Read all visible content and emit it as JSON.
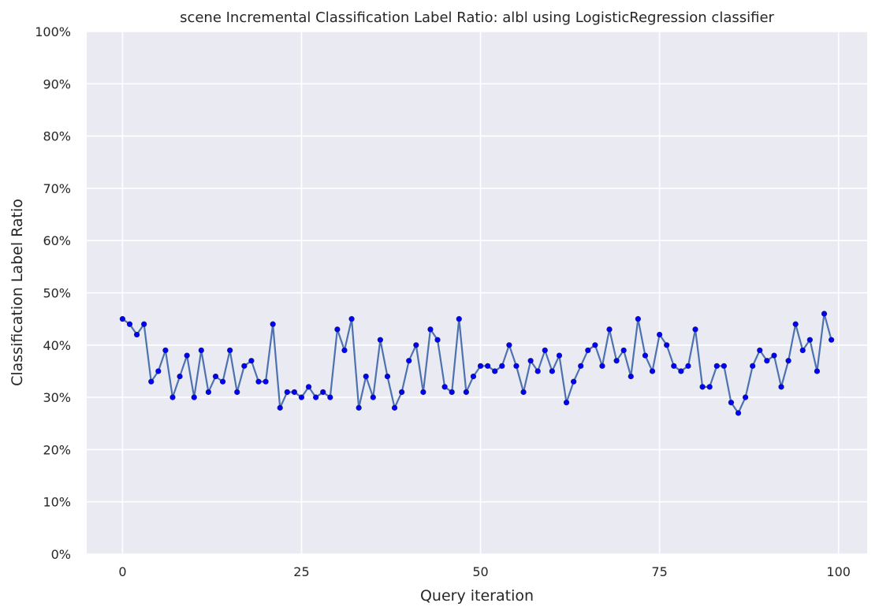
{
  "chart_data": {
    "type": "line",
    "title": "scene Incremental Classification Label Ratio: albl using LogisticRegression classifier",
    "xlabel": "Query iteration",
    "ylabel": "Classification Label Ratio",
    "xlim": [
      -5,
      104
    ],
    "ylim": [
      0,
      100
    ],
    "xticks": [
      0,
      25,
      50,
      75,
      100
    ],
    "xtick_labels": [
      "0",
      "25",
      "50",
      "75",
      "100"
    ],
    "yticks": [
      0,
      10,
      20,
      30,
      40,
      50,
      60,
      70,
      80,
      90,
      100
    ],
    "ytick_labels": [
      "0%",
      "10%",
      "20%",
      "30%",
      "40%",
      "50%",
      "60%",
      "70%",
      "80%",
      "90%",
      "100%"
    ],
    "grid": true,
    "series": [
      {
        "name": "label ratio",
        "line_color": "#4c72b0",
        "marker_color": "#0000ff",
        "x": [
          0,
          1,
          2,
          3,
          4,
          5,
          6,
          7,
          8,
          9,
          10,
          11,
          12,
          13,
          14,
          15,
          16,
          17,
          18,
          19,
          20,
          21,
          22,
          23,
          24,
          25,
          26,
          27,
          28,
          29,
          30,
          31,
          32,
          33,
          34,
          35,
          36,
          37,
          38,
          39,
          40,
          41,
          42,
          43,
          44,
          45,
          46,
          47,
          48,
          49,
          50,
          51,
          52,
          53,
          54,
          55,
          56,
          57,
          58,
          59,
          60,
          61,
          62,
          63,
          64,
          65,
          66,
          67,
          68,
          69,
          70,
          71,
          72,
          73,
          74,
          75,
          76,
          77,
          78,
          79,
          80,
          81,
          82,
          83,
          84,
          85,
          86,
          87,
          88,
          89,
          90,
          91,
          92,
          93,
          94,
          95,
          96,
          97,
          98,
          99
        ],
        "values": [
          45,
          44,
          42,
          44,
          33,
          35,
          39,
          30,
          34,
          38,
          30,
          39,
          31,
          34,
          33,
          39,
          31,
          36,
          37,
          33,
          33,
          44,
          28,
          31,
          31,
          30,
          32,
          30,
          31,
          30,
          43,
          39,
          45,
          28,
          34,
          30,
          41,
          34,
          28,
          31,
          37,
          40,
          31,
          43,
          41,
          32,
          31,
          45,
          31,
          34,
          36,
          36,
          35,
          36,
          40,
          36,
          31,
          37,
          35,
          39,
          35,
          38,
          29,
          33,
          36,
          39,
          40,
          36,
          43,
          37,
          39,
          34,
          45,
          38,
          35,
          42,
          40,
          36,
          35,
          36,
          43,
          32,
          32,
          36,
          36,
          29,
          27,
          30,
          36,
          39,
          37,
          38,
          32,
          37,
          44,
          39,
          41,
          35,
          46,
          41
        ]
      }
    ]
  },
  "colors": {
    "plot_background": "#eaeaf2",
    "grid": "#ffffff",
    "line": "#4c72b0",
    "marker": "#0000ff"
  }
}
